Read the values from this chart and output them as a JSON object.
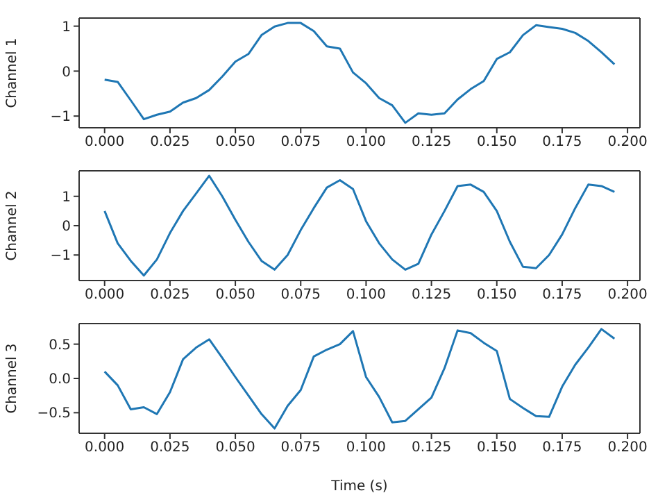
{
  "chart_data": [
    {
      "type": "line",
      "ylabel": "Channel 1",
      "x": [
        0,
        0.005,
        0.01,
        0.015,
        0.02,
        0.025,
        0.03,
        0.035,
        0.04,
        0.045,
        0.05,
        0.055,
        0.06,
        0.065,
        0.07,
        0.075,
        0.08,
        0.085,
        0.09,
        0.095,
        0.1,
        0.105,
        0.11,
        0.115,
        0.12,
        0.125,
        0.13,
        0.135,
        0.14,
        0.145,
        0.15,
        0.155,
        0.16,
        0.165,
        0.17,
        0.175,
        0.18,
        0.185,
        0.19,
        0.195
      ],
      "series": [
        {
          "color": "#1f77b4",
          "values": [
            -0.19,
            -0.24,
            -0.65,
            -1.07,
            -0.97,
            -0.9,
            -0.7,
            -0.6,
            -0.42,
            -0.12,
            0.21,
            0.38,
            0.8,
            0.99,
            1.07,
            1.07,
            0.89,
            0.55,
            0.5,
            -0.03,
            -0.27,
            -0.6,
            -0.76,
            -1.15,
            -0.94,
            -0.97,
            -0.94,
            -0.63,
            -0.4,
            -0.22,
            0.27,
            0.42,
            0.8,
            1.02,
            0.98,
            0.94,
            0.85,
            0.67,
            0.42,
            0.15
          ]
        }
      ],
      "xlim": [
        -0.00975,
        0.20475
      ],
      "xticks": [
        {
          "value": 0,
          "label": "0.000"
        },
        {
          "value": 0.025,
          "label": "0.025"
        },
        {
          "value": 0.05,
          "label": "0.050"
        },
        {
          "value": 0.075,
          "label": "0.075"
        },
        {
          "value": 0.1,
          "label": "0.100"
        },
        {
          "value": 0.125,
          "label": "0.125"
        },
        {
          "value": 0.15,
          "label": "0.150"
        },
        {
          "value": 0.175,
          "label": "0.175"
        },
        {
          "value": 0.2,
          "label": "0.200"
        }
      ],
      "ylim": [
        -1.26,
        1.18
      ],
      "yticks": [
        {
          "value": -1,
          "label": "−1"
        },
        0,
        1
      ],
      "line_style": "solid"
    },
    {
      "type": "line",
      "ylabel": "Channel 2",
      "x": [
        0,
        0.005,
        0.01,
        0.015,
        0.02,
        0.025,
        0.03,
        0.035,
        0.04,
        0.045,
        0.05,
        0.055,
        0.06,
        0.065,
        0.07,
        0.075,
        0.08,
        0.085,
        0.09,
        0.095,
        0.1,
        0.105,
        0.11,
        0.115,
        0.12,
        0.125,
        0.13,
        0.135,
        0.14,
        0.145,
        0.15,
        0.155,
        0.16,
        0.165,
        0.17,
        0.175,
        0.18,
        0.185,
        0.19,
        0.195
      ],
      "series": [
        {
          "color": "#1f77b4",
          "values": [
            0.5,
            -0.6,
            -1.2,
            -1.7,
            -1.15,
            -0.25,
            0.5,
            1.1,
            1.7,
            1.0,
            0.2,
            -0.55,
            -1.2,
            -1.5,
            -1.0,
            -0.15,
            0.6,
            1.3,
            1.55,
            1.25,
            0.15,
            -0.6,
            -1.15,
            -1.5,
            -1.3,
            -0.3,
            0.5,
            1.35,
            1.4,
            1.15,
            0.5,
            -0.55,
            -1.4,
            -1.45,
            -1.0,
            -0.3,
            0.6,
            1.4,
            1.35,
            1.15
          ]
        }
      ],
      "xlim": [
        -0.00975,
        0.20475
      ],
      "xticks": [
        {
          "value": 0,
          "label": "0.000"
        },
        {
          "value": 0.025,
          "label": "0.025"
        },
        {
          "value": 0.05,
          "label": "0.050"
        },
        {
          "value": 0.075,
          "label": "0.075"
        },
        {
          "value": 0.1,
          "label": "0.100"
        },
        {
          "value": 0.125,
          "label": "0.125"
        },
        {
          "value": 0.15,
          "label": "0.150"
        },
        {
          "value": 0.175,
          "label": "0.175"
        },
        {
          "value": 0.2,
          "label": "0.200"
        }
      ],
      "ylim": [
        -1.87,
        1.87
      ],
      "yticks": [
        {
          "value": -1,
          "label": "−1"
        },
        0,
        1
      ],
      "line_style": "solid"
    },
    {
      "type": "line",
      "ylabel": "Channel 3",
      "xlabel": "Time (s)",
      "x": [
        0,
        0.005,
        0.01,
        0.015,
        0.02,
        0.025,
        0.03,
        0.035,
        0.04,
        0.045,
        0.05,
        0.055,
        0.06,
        0.065,
        0.07,
        0.075,
        0.08,
        0.085,
        0.09,
        0.095,
        0.1,
        0.105,
        0.11,
        0.115,
        0.12,
        0.125,
        0.13,
        0.135,
        0.14,
        0.145,
        0.15,
        0.155,
        0.16,
        0.165,
        0.17,
        0.175,
        0.18,
        0.185,
        0.19,
        0.195
      ],
      "series": [
        {
          "color": "#1f77b4",
          "values": [
            0.1,
            -0.1,
            -0.45,
            -0.42,
            -0.52,
            -0.2,
            0.28,
            0.45,
            0.57,
            0.3,
            0.02,
            -0.25,
            -0.52,
            -0.73,
            -0.4,
            -0.17,
            0.32,
            0.42,
            0.5,
            0.69,
            0.02,
            -0.27,
            -0.64,
            -0.62,
            -0.45,
            -0.28,
            0.15,
            0.7,
            0.66,
            0.52,
            0.4,
            -0.3,
            -0.43,
            -0.55,
            -0.56,
            -0.12,
            0.2,
            0.45,
            0.72,
            0.58
          ]
        }
      ],
      "xlim": [
        -0.00975,
        0.20475
      ],
      "xticks": [
        {
          "value": 0,
          "label": "0.000"
        },
        {
          "value": 0.025,
          "label": "0.025"
        },
        {
          "value": 0.05,
          "label": "0.050"
        },
        {
          "value": 0.075,
          "label": "0.075"
        },
        {
          "value": 0.1,
          "label": "0.100"
        },
        {
          "value": 0.125,
          "label": "0.125"
        },
        {
          "value": 0.15,
          "label": "0.150"
        },
        {
          "value": 0.175,
          "label": "0.175"
        },
        {
          "value": 0.2,
          "label": "0.200"
        }
      ],
      "ylim": [
        -0.8,
        0.8
      ],
      "yticks": [
        {
          "value": -0.5,
          "label": "−0.5"
        },
        {
          "value": 0,
          "label": "0.0"
        },
        0.5
      ],
      "line_style": "solid"
    }
  ]
}
